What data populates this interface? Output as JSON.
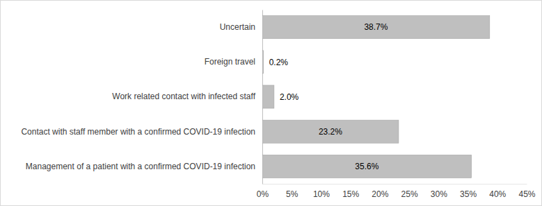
{
  "chart_data": {
    "type": "bar",
    "orientation": "horizontal",
    "categories": [
      "Uncertain",
      "Foreign travel",
      "Work related contact with infected staff",
      "Contact with staff member with a confirmed COVID-19 infection",
      "Management of a patient with a confirmed COVID-19 infection"
    ],
    "values": [
      38.7,
      0.2,
      2.0,
      23.2,
      35.6
    ],
    "value_labels": [
      "38.7%",
      "0.2%",
      "2.0%",
      "23.2%",
      "35.6%"
    ],
    "data_labels": true,
    "color": "#bfbfbf",
    "xlim": [
      0,
      45
    ],
    "xticks": [
      {
        "value": 0,
        "label": "0%"
      },
      {
        "value": 5,
        "label": "5%"
      },
      {
        "value": 10,
        "label": "10%"
      },
      {
        "value": 15,
        "label": "15%"
      },
      {
        "value": 20,
        "label": "20%"
      },
      {
        "value": 25,
        "label": "25%"
      },
      {
        "value": 30,
        "label": "30%"
      },
      {
        "value": 35,
        "label": "35%"
      },
      {
        "value": 40,
        "label": "40%"
      },
      {
        "value": 45,
        "label": "45%"
      }
    ],
    "grid": false
  }
}
